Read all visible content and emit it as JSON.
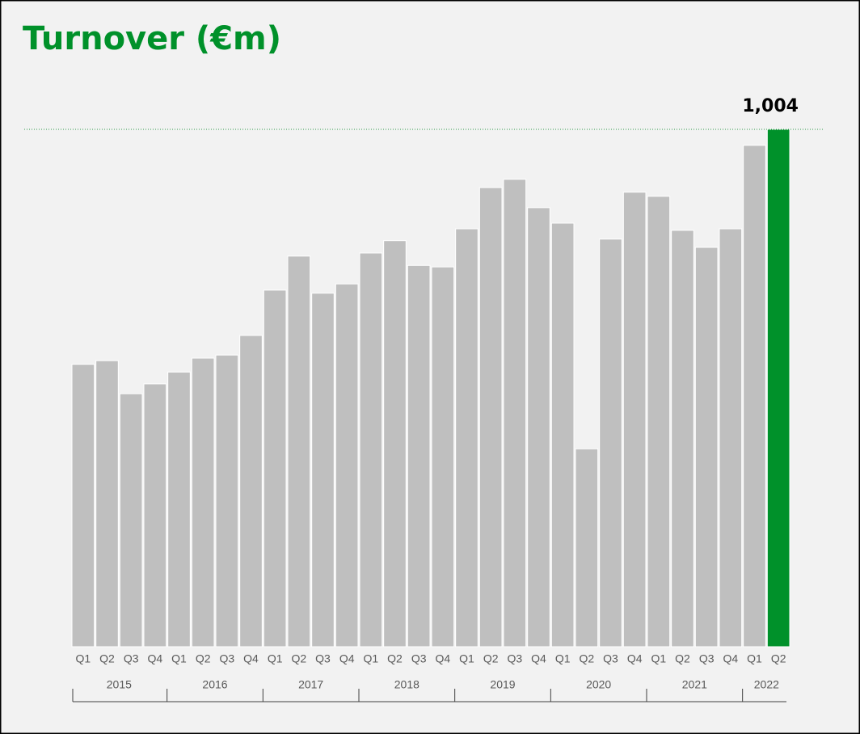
{
  "chart_data": {
    "type": "bar",
    "title": "Turnover (€m)",
    "groups": [
      {
        "name": "2015",
        "categories": [
          "Q1",
          "Q2",
          "Q3",
          "Q4"
        ]
      },
      {
        "name": "2016",
        "categories": [
          "Q1",
          "Q2",
          "Q3",
          "Q4"
        ]
      },
      {
        "name": "2017",
        "categories": [
          "Q1",
          "Q2",
          "Q3",
          "Q4"
        ]
      },
      {
        "name": "2018",
        "categories": [
          "Q1",
          "Q2",
          "Q3",
          "Q4"
        ]
      },
      {
        "name": "2019",
        "categories": [
          "Q1",
          "Q2",
          "Q3",
          "Q4"
        ]
      },
      {
        "name": "2020",
        "categories": [
          "Q1",
          "Q2",
          "Q3",
          "Q4"
        ]
      },
      {
        "name": "2021",
        "categories": [
          "Q1",
          "Q2",
          "Q3",
          "Q4"
        ]
      },
      {
        "name": "2022",
        "categories": [
          "Q1",
          "Q2"
        ]
      }
    ],
    "values": [
      548,
      555,
      491,
      510,
      533,
      560,
      566,
      604,
      692,
      758,
      686,
      704,
      764,
      788,
      740,
      737,
      811,
      891,
      907,
      852,
      822,
      384,
      791,
      882,
      874,
      808,
      775,
      811,
      973,
      1004
    ],
    "value_labels": [
      null,
      null,
      null,
      null,
      null,
      null,
      null,
      null,
      null,
      null,
      null,
      null,
      null,
      null,
      null,
      null,
      null,
      null,
      null,
      null,
      null,
      null,
      null,
      null,
      null,
      null,
      null,
      null,
      null,
      "1,004"
    ],
    "color": "#bfbfbf",
    "highlight_color": "#00912a",
    "reference_line_color": "#2e9a4a"
  }
}
